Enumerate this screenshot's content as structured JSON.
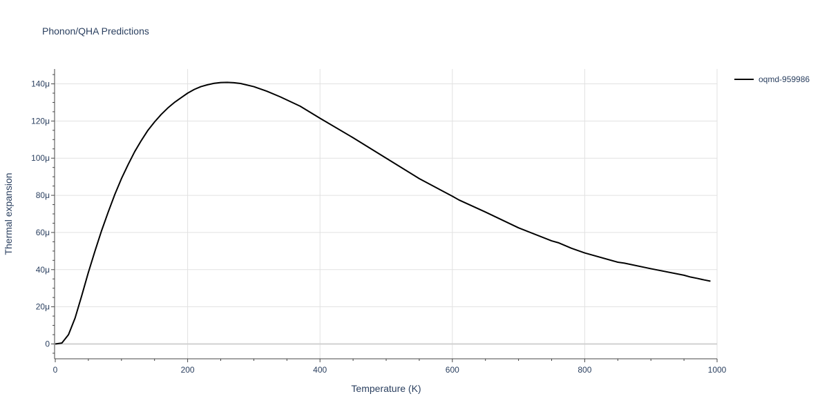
{
  "chart_data": {
    "type": "line",
    "title": "Phonon/QHA Predictions",
    "xlabel": "Temperature (K)",
    "ylabel": "Thermal expansion",
    "xlim": [
      0,
      1000
    ],
    "ylim": [
      -8,
      148
    ],
    "y_unit_suffix": "μ",
    "grid": true,
    "legend_position": "top-right-outside",
    "x_ticks": [
      0,
      200,
      400,
      600,
      800,
      1000
    ],
    "x_tick_labels": [
      "0",
      "200",
      "400",
      "600",
      "800",
      "1000"
    ],
    "y_ticks": [
      0,
      20,
      40,
      60,
      80,
      100,
      120,
      140
    ],
    "y_tick_labels": [
      "0",
      "20μ",
      "40μ",
      "60μ",
      "80μ",
      "100μ",
      "120μ",
      "140μ"
    ],
    "series": [
      {
        "name": "oqmd-959986",
        "color": "#000000",
        "x": [
          0,
          10,
          20,
          30,
          40,
          50,
          60,
          70,
          80,
          90,
          100,
          110,
          120,
          130,
          140,
          150,
          160,
          170,
          180,
          190,
          200,
          210,
          220,
          230,
          240,
          250,
          260,
          270,
          280,
          300,
          320,
          340,
          370,
          400,
          450,
          500,
          550,
          600,
          610,
          650,
          700,
          750,
          760,
          780,
          800,
          850,
          860,
          900,
          950,
          960,
          970,
          980,
          990
        ],
        "y": [
          0,
          0.5,
          5,
          14,
          26,
          38.5,
          50,
          61,
          71,
          80.5,
          89,
          96.5,
          103.5,
          109.5,
          115,
          119.5,
          123.5,
          127,
          130,
          132.5,
          135,
          137,
          138.5,
          139.5,
          140.3,
          140.7,
          140.8,
          140.6,
          140.2,
          138.5,
          136,
          133,
          128,
          121.5,
          111,
          100,
          89,
          79.5,
          77.5,
          71,
          62.5,
          55.5,
          54.5,
          51.5,
          49,
          44,
          43.5,
          40.5,
          37,
          36,
          35.3,
          34.5,
          33.8
        ]
      }
    ]
  }
}
